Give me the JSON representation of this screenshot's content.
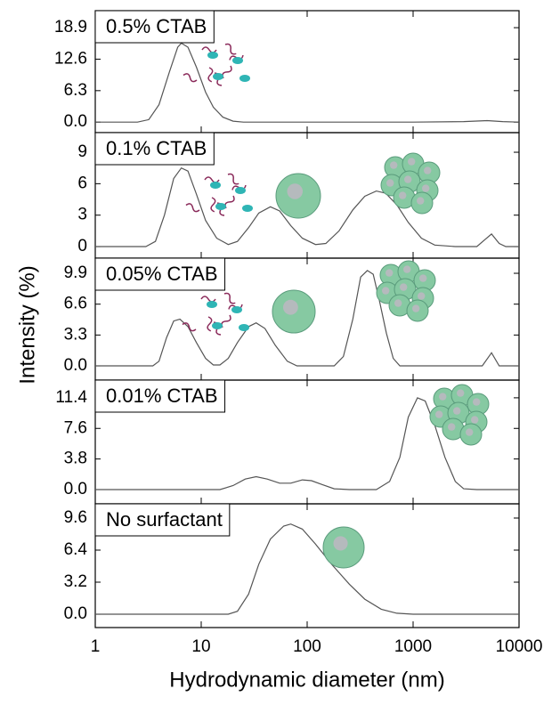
{
  "x_label": "Hydrodynamic diameter (nm)",
  "y_label": "Intensity (%)",
  "chart_data": [
    {
      "type": "line",
      "title": "0.5% CTAB",
      "color": "#555555",
      "log_x": true,
      "xlim": [
        1,
        10000
      ],
      "xticks": [
        1,
        10,
        100,
        1000,
        10000
      ],
      "ylim": [
        -2.1,
        22.3
      ],
      "yticks": [
        {
          "value": 0,
          "label": "0.0"
        },
        6.3,
        12.6,
        18.9
      ],
      "x": [
        1,
        2.5,
        3.2,
        4,
        5,
        6,
        6.5,
        7.5,
        9,
        11,
        13,
        16,
        20,
        25,
        1000,
        3000,
        5000,
        7000,
        10000
      ],
      "values": [
        0,
        0,
        0.5,
        3.5,
        10,
        15,
        15.8,
        15,
        11,
        6,
        3,
        1,
        0.2,
        0,
        0,
        0.1,
        0.3,
        0.1,
        0
      ]
    },
    {
      "type": "line",
      "title": "0.1% CTAB",
      "color": "#555555",
      "log_x": true,
      "xlim": [
        1,
        10000
      ],
      "xticks": [
        1,
        10,
        100,
        1000,
        10000
      ],
      "ylim": [
        -1.1,
        10.87
      ],
      "yticks": [
        0,
        3,
        6,
        9
      ],
      "x": [
        1,
        3,
        3.7,
        4.5,
        5.5,
        6.5,
        7.5,
        9,
        11,
        14,
        18,
        22,
        28,
        35,
        45,
        55,
        70,
        90,
        120,
        150,
        200,
        270,
        350,
        450,
        550,
        700,
        900,
        1200,
        1600,
        2500,
        4000,
        4800,
        5500,
        6500,
        7500,
        10000
      ],
      "values": [
        0,
        0,
        0.5,
        3,
        6.5,
        7.5,
        7.2,
        5,
        2.5,
        0.8,
        0.2,
        0.5,
        1.8,
        3.2,
        3.8,
        3.4,
        2,
        0.8,
        0.2,
        0.3,
        1.5,
        3.5,
        4.8,
        5.3,
        5.1,
        4,
        2.3,
        0.8,
        0.15,
        0,
        0,
        0.7,
        1.2,
        0.3,
        0,
        0
      ]
    },
    {
      "type": "line",
      "title": "0.05% CTAB",
      "color": "#555555",
      "log_x": true,
      "xlim": [
        1,
        10000
      ],
      "xticks": [
        1,
        10,
        100,
        1000,
        10000
      ],
      "ylim": [
        -1.52,
        11.52
      ],
      "yticks": [
        {
          "value": 0,
          "label": "0.0"
        },
        3.3,
        6.6,
        9.9
      ],
      "x": [
        1,
        3.5,
        4,
        4.7,
        5.5,
        6.3,
        7.5,
        9,
        11,
        13,
        15,
        18,
        22,
        28,
        33,
        40,
        50,
        65,
        80,
        180,
        220,
        270,
        320,
        370,
        420,
        480,
        560,
        650,
        750,
        4500,
        5500,
        6500,
        10000
      ],
      "values": [
        0,
        0,
        0.5,
        3,
        4.8,
        5,
        4.2,
        2.5,
        0.8,
        0.1,
        0.1,
        0.8,
        2.5,
        4.2,
        4.6,
        4,
        2.2,
        0.5,
        0,
        0,
        1,
        5,
        9.5,
        10.2,
        9.8,
        7,
        3.5,
        0.8,
        0,
        0,
        1.4,
        0,
        0
      ]
    },
    {
      "type": "line",
      "title": "0.01% CTAB",
      "color": "#555555",
      "log_x": true,
      "xlim": [
        1,
        10000
      ],
      "xticks": [
        1,
        10,
        100,
        1000,
        10000
      ],
      "ylim": [
        -1.77,
        13.6
      ],
      "yticks": [
        {
          "value": 0,
          "label": "0.0"
        },
        3.8,
        7.6,
        11.4
      ],
      "x": [
        1,
        15,
        20,
        26,
        33,
        42,
        55,
        70,
        90,
        110,
        140,
        180,
        250,
        450,
        600,
        750,
        900,
        1100,
        1300,
        1600,
        2000,
        2500,
        3000,
        4000,
        10000
      ],
      "values": [
        0,
        0,
        0.5,
        1.3,
        1.6,
        1.3,
        0.8,
        0.8,
        1.2,
        1.1,
        0.6,
        0.1,
        0,
        0,
        1,
        4,
        9,
        11.4,
        11,
        8,
        4,
        1,
        0.1,
        0,
        0
      ]
    },
    {
      "type": "line",
      "title": "No surfactant",
      "color": "#555555",
      "log_x": true,
      "xlim": [
        1,
        10000
      ],
      "xticks": [
        1,
        10,
        100,
        1000,
        10000
      ],
      "ylim": [
        -1.33,
        11.02
      ],
      "yticks": [
        {
          "value": 0,
          "label": "0.0"
        },
        3.2,
        6.4,
        9.6
      ],
      "x": [
        1,
        18,
        22,
        28,
        35,
        45,
        60,
        70,
        90,
        120,
        170,
        250,
        350,
        500,
        700,
        1000,
        10000
      ],
      "values": [
        0,
        0,
        0.3,
        2,
        5,
        7.5,
        8.8,
        9,
        8.5,
        7,
        5,
        3,
        1.5,
        0.5,
        0.1,
        0,
        0
      ]
    }
  ]
}
